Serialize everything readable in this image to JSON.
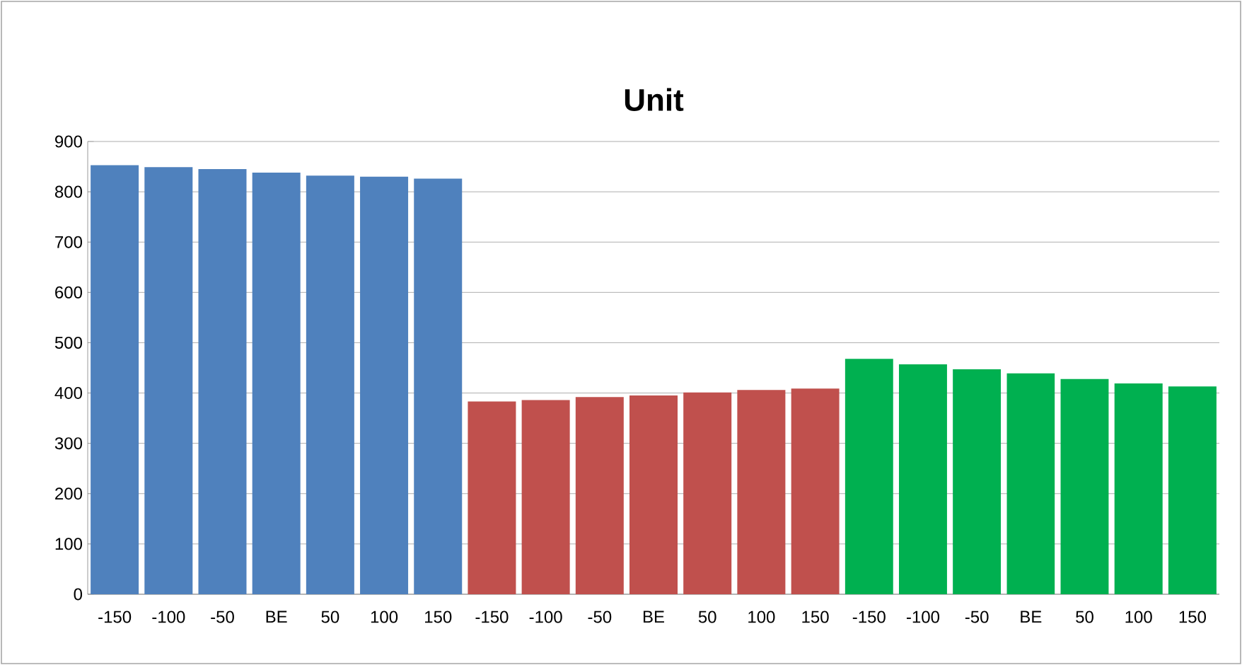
{
  "chart_data": {
    "type": "bar",
    "title": "Unit",
    "categories": [
      "-150",
      "-100",
      "-50",
      "BE",
      "50",
      "100",
      "150",
      "-150",
      "-100",
      "-50",
      "BE",
      "50",
      "100",
      "150",
      "-150",
      "-100",
      "-50",
      "BE",
      "50",
      "100",
      "150"
    ],
    "values": [
      853,
      849,
      845,
      838,
      832,
      830,
      826,
      383,
      386,
      392,
      395,
      401,
      406,
      409,
      468,
      457,
      447,
      439,
      428,
      419,
      413
    ],
    "colors": [
      "#4f81bd",
      "#4f81bd",
      "#4f81bd",
      "#4f81bd",
      "#4f81bd",
      "#4f81bd",
      "#4f81bd",
      "#c0504d",
      "#c0504d",
      "#c0504d",
      "#c0504d",
      "#c0504d",
      "#c0504d",
      "#c0504d",
      "#00b050",
      "#00b050",
      "#00b050",
      "#00b050",
      "#00b050",
      "#00b050",
      "#00b050"
    ],
    "ylim": [
      0,
      900
    ],
    "yticks": [
      0,
      100,
      200,
      300,
      400,
      500,
      600,
      700,
      800,
      900
    ],
    "grid": "y"
  }
}
